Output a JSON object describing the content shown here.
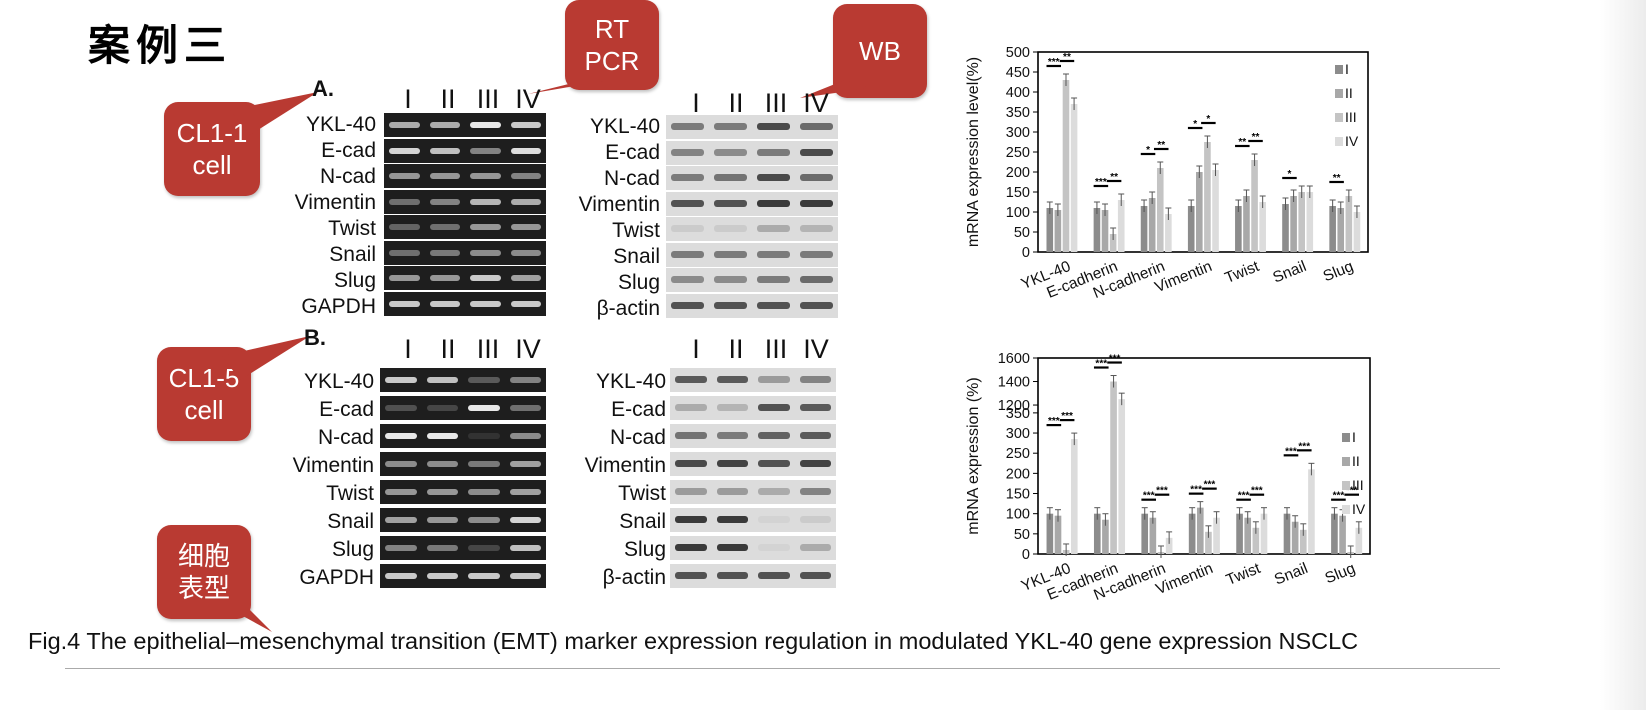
{
  "slide": {
    "title": "案例三",
    "caption": "Fig.4 The epithelial–mesenchymal transition (EMT) marker expression regulation in modulated YKL-40 gene expression NSCLC"
  },
  "callouts": {
    "rt_pcr": "RT\nPCR",
    "wb": "WB",
    "cl11": "CL1-1\ncell",
    "cl15": "CL1-5\ncell",
    "phenotype": "细胞\n表型"
  },
  "panels": {
    "a_label": "A.",
    "b_label": "B."
  },
  "lanes": [
    "I",
    "II",
    "III",
    "IV"
  ],
  "rt_pcr_rows": [
    "YKL-40",
    "E-cad",
    "N-cad",
    "Vimentin",
    "Twist",
    "Snail",
    "Slug",
    "GAPDH"
  ],
  "wb_rows": [
    "YKL-40",
    "E-cad",
    "N-cad",
    "Vimentin",
    "Twist",
    "Snail",
    "Slug",
    "β-actin"
  ],
  "colors": {
    "callout": "#b93a32",
    "gel_background": "#1e1e1e",
    "blot_background": "#dcdcdc",
    "series": [
      "#8c8c8c",
      "#a8a8a8",
      "#c4c4c4",
      "#dcdcdc"
    ]
  },
  "chart_data": [
    {
      "type": "bar",
      "categories": [
        "YKL-40",
        "E-cadherin",
        "N-cadherin",
        "Vimentin",
        "Twist",
        "Snail",
        "Slug"
      ],
      "series": [
        {
          "name": "I",
          "values": [
            110,
            110,
            115,
            115,
            115,
            120,
            115
          ]
        },
        {
          "name": "II",
          "values": [
            105,
            105,
            135,
            200,
            140,
            140,
            110
          ]
        },
        {
          "name": "III",
          "values": [
            430,
            45,
            210,
            275,
            230,
            150,
            140
          ]
        },
        {
          "name": "IV",
          "values": [
            370,
            130,
            95,
            205,
            125,
            150,
            100
          ]
        }
      ],
      "yticks": [
        0,
        50,
        100,
        150,
        200,
        250,
        300,
        350,
        400,
        450,
        500
      ],
      "ylim": [
        0,
        500
      ],
      "ylabel": "mRNA expression level(%)",
      "legend_position": "top-right",
      "significance": [
        {
          "category": "YKL-40",
          "label": "***"
        },
        {
          "category": "YKL-40",
          "label": "**"
        },
        {
          "category": "E-cadherin",
          "label": "***"
        },
        {
          "category": "E-cadherin",
          "label": "**"
        },
        {
          "category": "N-cadherin",
          "label": "*"
        },
        {
          "category": "N-cadherin",
          "label": "**"
        },
        {
          "category": "Vimentin",
          "label": "*"
        },
        {
          "category": "Vimentin",
          "label": "*"
        },
        {
          "category": "Twist",
          "label": "**"
        },
        {
          "category": "Twist",
          "label": "**"
        },
        {
          "category": "Snail",
          "label": "*"
        },
        {
          "category": "Slug",
          "label": "**"
        }
      ]
    },
    {
      "type": "bar",
      "categories": [
        "YKL-40",
        "E-cadherin",
        "N-cadherin",
        "Vimentin",
        "Twist",
        "Snail",
        "Slug"
      ],
      "series": [
        {
          "name": "I",
          "values": [
            100,
            100,
            100,
            100,
            100,
            100,
            100
          ]
        },
        {
          "name": "II",
          "values": [
            95,
            85,
            90,
            115,
            90,
            80,
            95
          ]
        },
        {
          "name": "III",
          "values": [
            10,
            1400,
            5,
            55,
            65,
            60,
            5
          ]
        },
        {
          "name": "IV",
          "values": [
            285,
            1250,
            40,
            90,
            100,
            210,
            65
          ]
        }
      ],
      "yticks": [
        0,
        50,
        100,
        150,
        200,
        250,
        300,
        350,
        1200,
        1400,
        1600
      ],
      "ylim": [
        0,
        1600
      ],
      "axis_break": [
        350,
        1200
      ],
      "ylabel": "mRNA expression (%)",
      "legend_position": "right",
      "significance": [
        {
          "category": "YKL-40",
          "label": "***"
        },
        {
          "category": "YKL-40",
          "label": "***"
        },
        {
          "category": "E-cadherin",
          "label": "***"
        },
        {
          "category": "E-cadherin",
          "label": "***"
        },
        {
          "category": "N-cadherin",
          "label": "***"
        },
        {
          "category": "N-cadherin",
          "label": "***"
        },
        {
          "category": "Vimentin",
          "label": "***"
        },
        {
          "category": "Vimentin",
          "label": "***"
        },
        {
          "category": "Twist",
          "label": "***"
        },
        {
          "category": "Twist",
          "label": "***"
        },
        {
          "category": "Snail",
          "label": "***"
        },
        {
          "category": "Snail",
          "label": "***"
        },
        {
          "category": "Slug",
          "label": "***"
        },
        {
          "category": "Slug",
          "label": "***"
        }
      ]
    }
  ]
}
